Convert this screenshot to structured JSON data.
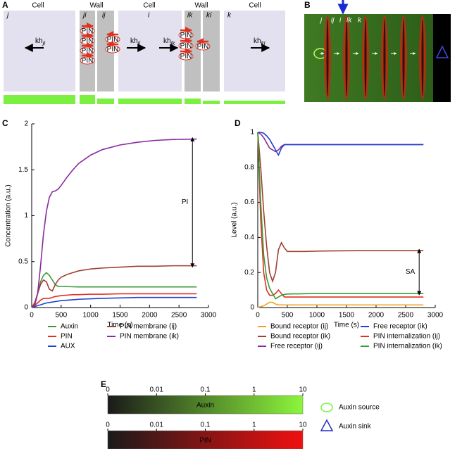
{
  "panel_labels": [
    "A",
    "B",
    "C",
    "D",
    "E"
  ],
  "panel_a": {
    "headers": [
      "Cell",
      "Wall",
      "Cell",
      "Wall",
      "Cell"
    ],
    "compartments": [
      "j",
      "ji",
      "ij",
      "i",
      "ik",
      "ki",
      "k"
    ],
    "pin_label": "PIN",
    "rates": [
      {
        "base": "kh",
        "sub": "ji"
      },
      {
        "base": "kh",
        "sub": "ij"
      },
      {
        "base": "kh",
        "sub": "ik"
      },
      {
        "base": "kh",
        "sub": "ki"
      }
    ]
  },
  "panel_b": {
    "labels": [
      "j",
      "ij",
      "i",
      "ik",
      "k"
    ]
  },
  "chart_data": [
    {
      "type": "line",
      "xlabel": "Time (s)",
      "ylabel": "Concentration (a.u.)",
      "annotation": "PI",
      "xlim": [
        0,
        3000
      ],
      "xticks": [
        0,
        500,
        1000,
        1500,
        2000,
        2500,
        3000
      ],
      "ylim": [
        0,
        2
      ],
      "yticks": [
        0,
        0.5,
        1,
        1.5,
        2
      ],
      "x": [
        0,
        50,
        100,
        150,
        200,
        250,
        300,
        350,
        400,
        450,
        500,
        600,
        700,
        800,
        1000,
        1200,
        1500,
        1800,
        2100,
        2400,
        2800
      ],
      "series": [
        {
          "name": "Auxin",
          "color": "#3a9a3a",
          "values": [
            0,
            0.05,
            0.15,
            0.28,
            0.35,
            0.38,
            0.35,
            0.3,
            0.25,
            0.23,
            0.23,
            0.228,
            0.226,
            0.225,
            0.225,
            0.225,
            0.225,
            0.225,
            0.225,
            0.225,
            0.225
          ]
        },
        {
          "name": "PIN",
          "color": "#e03020",
          "values": [
            0,
            0.02,
            0.05,
            0.08,
            0.1,
            0.1,
            0.1,
            0.11,
            0.12,
            0.125,
            0.13,
            0.135,
            0.14,
            0.14,
            0.145,
            0.145,
            0.15,
            0.15,
            0.15,
            0.15,
            0.15
          ]
        },
        {
          "name": "AUX",
          "color": "#2040d0",
          "values": [
            0,
            0.01,
            0.02,
            0.03,
            0.04,
            0.05,
            0.055,
            0.06,
            0.065,
            0.07,
            0.075,
            0.08,
            0.085,
            0.09,
            0.095,
            0.1,
            0.105,
            0.11,
            0.11,
            0.11,
            0.11
          ]
        },
        {
          "name": "PIN membrane (ij)",
          "color": "#a04030",
          "values": [
            0,
            0.05,
            0.15,
            0.25,
            0.3,
            0.28,
            0.2,
            0.18,
            0.25,
            0.3,
            0.33,
            0.36,
            0.38,
            0.4,
            0.42,
            0.43,
            0.44,
            0.45,
            0.45,
            0.455,
            0.455
          ]
        },
        {
          "name": "PIN membrane (ik)",
          "color": "#8a2aa0",
          "values": [
            0,
            0.02,
            0.15,
            0.45,
            0.8,
            1.05,
            1.2,
            1.26,
            1.27,
            1.29,
            1.33,
            1.42,
            1.5,
            1.57,
            1.66,
            1.72,
            1.77,
            1.8,
            1.82,
            1.83,
            1.835
          ]
        }
      ]
    },
    {
      "type": "line",
      "xlabel": "Time (s)",
      "ylabel": "Level (a.u.)",
      "annotation": "SA",
      "xlim": [
        0,
        3000
      ],
      "xticks": [
        0,
        500,
        1000,
        1500,
        2000,
        2500,
        3000
      ],
      "ylim": [
        0,
        1
      ],
      "yticks": [
        0,
        0.2,
        0.4,
        0.6,
        0.8,
        1
      ],
      "x": [
        0,
        50,
        100,
        150,
        200,
        250,
        300,
        350,
        400,
        450,
        500,
        600,
        700,
        800,
        1000,
        1200,
        1500,
        1800,
        2100,
        2400,
        2800
      ],
      "series": [
        {
          "name": "Bound receptor (ij)",
          "color": "#f0a020",
          "values": [
            0,
            0.005,
            0.01,
            0.02,
            0.03,
            0.03,
            0.02,
            0.015,
            0.015,
            0.015,
            0.015,
            0.015,
            0.015,
            0.015,
            0.015,
            0.015,
            0.015,
            0.015,
            0.015,
            0.015,
            0.015
          ]
        },
        {
          "name": "Bound receptor (ik)",
          "color": "#a04030",
          "values": [
            1,
            0.8,
            0.55,
            0.35,
            0.2,
            0.15,
            0.2,
            0.33,
            0.37,
            0.34,
            0.32,
            0.32,
            0.32,
            0.32,
            0.322,
            0.323,
            0.324,
            0.325,
            0.325,
            0.325,
            0.325
          ]
        },
        {
          "name": "Free receptor (ij)",
          "color": "#8a2aa0",
          "values": [
            1,
            0.99,
            0.97,
            0.94,
            0.91,
            0.9,
            0.89,
            0.9,
            0.92,
            0.93,
            0.93,
            0.93,
            0.93,
            0.93,
            0.93,
            0.93,
            0.93,
            0.93,
            0.93,
            0.93,
            0.93
          ]
        },
        {
          "name": "Free receptor (ik)",
          "color": "#2040d0",
          "values": [
            1,
            1,
            0.995,
            0.98,
            0.96,
            0.93,
            0.9,
            0.87,
            0.91,
            0.93,
            0.93,
            0.93,
            0.93,
            0.93,
            0.93,
            0.93,
            0.93,
            0.93,
            0.93,
            0.93,
            0.93
          ]
        },
        {
          "name": "PIN internalization (ij)",
          "color": "#e03020",
          "values": [
            1,
            0.5,
            0.2,
            0.1,
            0.07,
            0.07,
            0.08,
            0.1,
            0.08,
            0.06,
            0.06,
            0.06,
            0.06,
            0.06,
            0.06,
            0.06,
            0.06,
            0.06,
            0.06,
            0.06,
            0.06
          ]
        },
        {
          "name": "PIN internalization (ik)",
          "color": "#3a9a3a",
          "values": [
            1,
            0.6,
            0.3,
            0.17,
            0.11,
            0.08,
            0.05,
            0.06,
            0.07,
            0.075,
            0.077,
            0.078,
            0.078,
            0.079,
            0.08,
            0.08,
            0.08,
            0.08,
            0.08,
            0.08,
            0.08
          ]
        }
      ]
    }
  ],
  "panel_e": {
    "colorbars": [
      {
        "name": "Auxin",
        "ticks": [
          0,
          0.01,
          0.1,
          1,
          10
        ]
      },
      {
        "name": "PIN",
        "ticks": [
          0,
          0.01,
          0.1,
          1,
          10
        ]
      }
    ],
    "legend": [
      "Auxin source",
      "Auxin sink"
    ]
  }
}
